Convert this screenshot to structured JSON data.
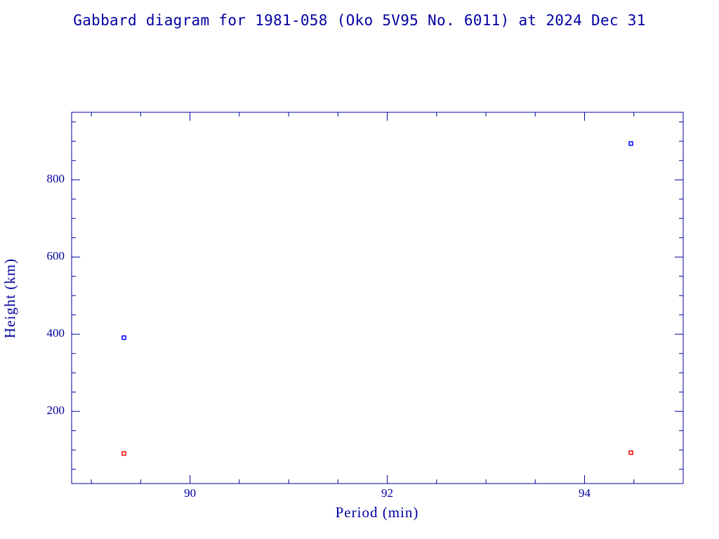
{
  "chart_data": {
    "type": "scatter",
    "title": "Gabbard diagram for 1981-058 (Oko 5V95 No. 6011) at 2024 Dec 31",
    "x_label": "Period (min)",
    "y_label": "Height (km)",
    "x": [
      89.33,
      94.47
    ],
    "series": [
      {
        "color": "#0000ff",
        "values": [
          391,
          894
        ]
      },
      {
        "color": "#ff0000",
        "values": [
          91,
          93
        ]
      }
    ],
    "xlim": [
      88.8,
      95.0
    ],
    "ylim": [
      13,
      975
    ],
    "xticks": [
      90,
      92,
      94
    ],
    "yticks": [
      200,
      400,
      600,
      800
    ],
    "xminorticks": [
      89,
      89.5,
      90.5,
      91,
      91.5,
      92.5,
      93,
      93.5,
      94.5
    ],
    "yminorticks": [
      50,
      100,
      150,
      250,
      300,
      350,
      450,
      500,
      550,
      650,
      700,
      750,
      850,
      900,
      950
    ],
    "grid": false
  }
}
